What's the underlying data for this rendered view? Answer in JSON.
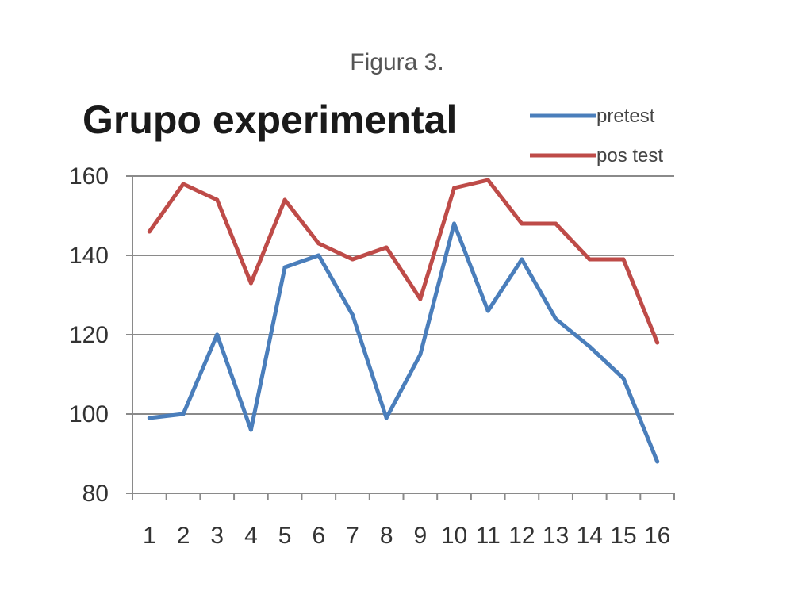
{
  "caption": "Figura 3.",
  "chart_data": {
    "type": "line",
    "title": "Grupo experimental",
    "xlabel": "",
    "ylabel": "",
    "categories": [
      "1",
      "2",
      "3",
      "4",
      "5",
      "6",
      "7",
      "8",
      "9",
      "10",
      "11",
      "12",
      "13",
      "14",
      "15",
      "16"
    ],
    "ylim": [
      80,
      160
    ],
    "yticks": [
      "80",
      "100",
      "120",
      "140",
      "160"
    ],
    "grid": true,
    "legend": "top-right",
    "series": [
      {
        "name": "pretest",
        "color": "#4a7ebb",
        "values": [
          99,
          100,
          120,
          96,
          137,
          140,
          125,
          99,
          115,
          148,
          126,
          139,
          124,
          117,
          109,
          88
        ]
      },
      {
        "name": "pos test",
        "color": "#be4b48",
        "values": [
          146,
          158,
          154,
          133,
          154,
          143,
          139,
          142,
          129,
          157,
          159,
          148,
          148,
          139,
          139,
          118
        ]
      }
    ]
  }
}
